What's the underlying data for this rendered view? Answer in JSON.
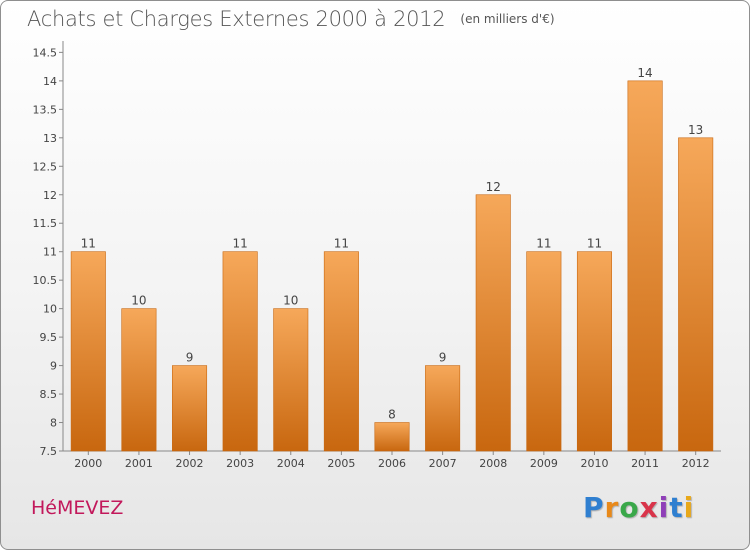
{
  "header": {
    "title": "Achats et Charges Externes 2000 à 2012",
    "unit": "(en milliers d'€)"
  },
  "footer": {
    "commune": "HéMEVEZ",
    "logo_letters": [
      "P",
      "r",
      "o",
      "x",
      "i",
      "t",
      "i"
    ],
    "logo_colors": [
      "#2f7fd0",
      "#e8891a",
      "#3aa84a",
      "#d9344a",
      "#8f3fb8",
      "#2f7fd0",
      "#e8a81a"
    ]
  },
  "colors": {
    "bar": "#f08c2a",
    "bar_light": "#f6a85a",
    "bar_dark": "#c8670f",
    "axis_text": "#444444",
    "grid": "#d8d8d8"
  },
  "chart_data": {
    "type": "bar",
    "categories": [
      "2000",
      "2001",
      "2002",
      "2003",
      "2004",
      "2005",
      "2006",
      "2007",
      "2008",
      "2009",
      "2010",
      "2011",
      "2012"
    ],
    "values": [
      11,
      10,
      9,
      11,
      10,
      11,
      8,
      9,
      12,
      11,
      11,
      14,
      13
    ],
    "value_labels": [
      "11",
      "10",
      "9",
      "11",
      "10",
      "11",
      "8",
      "9",
      "12",
      "11",
      "11",
      "14",
      "13"
    ],
    "yticks": [
      7.5,
      8,
      8.5,
      9,
      9.5,
      10,
      10.5,
      11,
      11.5,
      12,
      12.5,
      13,
      13.5,
      14,
      14.5
    ],
    "ytick_labels": [
      "7.5",
      "8",
      "8.5",
      "9",
      "9.5",
      "10",
      "10.5",
      "11",
      "11.5",
      "12",
      "12.5",
      "13",
      "13.5",
      "14",
      "14.5"
    ],
    "ylim": [
      7.5,
      14.7
    ],
    "grid": false,
    "title": "Achats et Charges Externes 2000 à 2012",
    "xlabel": "",
    "ylabel": ""
  }
}
